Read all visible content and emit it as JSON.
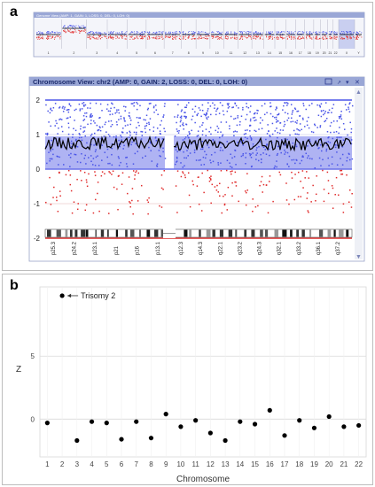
{
  "panel_a": {
    "letter": "a",
    "genome_header": "Genome View (AMP: 1, GAIN: 1, LOSS: 0, DEL: 0, LOH: 0)",
    "genome_labels": [
      "1",
      "2",
      "3",
      "4",
      "5",
      "6",
      "7",
      "8",
      "9",
      "10",
      "11",
      "12",
      "13",
      "14",
      "15",
      "16",
      "17",
      "18",
      "19",
      "20",
      "21",
      "22",
      "X",
      "Y"
    ],
    "chrom_header": "Chromosome View: chr2 (AMP: 0, GAIN: 2, LOSS: 0, DEL: 0, LOH: 0)",
    "y_ticks": [
      "2",
      "1",
      "0",
      "-1",
      "-2"
    ],
    "bands": [
      "p25.3",
      "p24.2",
      "p23.1",
      "p21",
      "p16",
      "p13.1",
      "q12.3",
      "q14.3",
      "q22.1",
      "q23.2",
      "q24.3",
      "q32.1",
      "q33.2",
      "q36.1",
      "q37.2"
    ],
    "colors": {
      "header_bg": "#9aa7d6",
      "gain": "#4a55e8",
      "loss": "#e02a2a",
      "line": "#000000"
    }
  },
  "panel_b": {
    "letter": "b",
    "annotation": "Trisomy 2",
    "xlabel": "Chromosome",
    "ylabel": "Z"
  },
  "chart_data": {
    "type": "scatter",
    "x": [
      1,
      2,
      3,
      4,
      5,
      6,
      7,
      8,
      9,
      10,
      11,
      12,
      13,
      14,
      15,
      16,
      17,
      18,
      19,
      20,
      21,
      22
    ],
    "y": [
      -0.3,
      9.8,
      -1.7,
      -0.2,
      -0.3,
      -1.6,
      -0.2,
      -1.5,
      0.4,
      -0.6,
      -0.1,
      -1.1,
      -1.7,
      -0.2,
      -0.4,
      0.7,
      -1.3,
      -0.1,
      -0.7,
      0.2,
      -0.6,
      -0.5
    ],
    "xticks": [
      "1",
      "2",
      "3",
      "4",
      "5",
      "6",
      "7",
      "8",
      "9",
      "10",
      "11",
      "12",
      "13",
      "14",
      "15",
      "16",
      "17",
      "18",
      "19",
      "20",
      "21",
      "22"
    ],
    "yticks": [
      "0",
      "5"
    ],
    "xlabel": "Chromosome",
    "ylabel": "Z",
    "ylim": [
      -3,
      10.5
    ],
    "xlim": [
      0.5,
      22.5
    ],
    "grid": true,
    "annotations": [
      {
        "text": "Trisomy 2",
        "x": 2,
        "y": 9.8
      }
    ]
  }
}
